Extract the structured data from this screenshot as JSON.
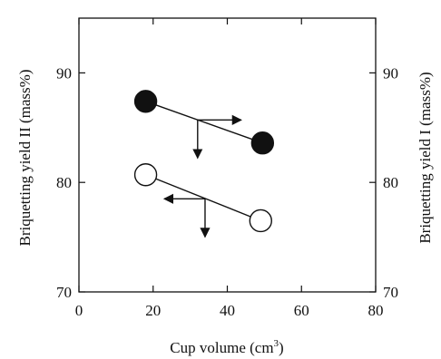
{
  "chart_data": {
    "type": "scatter",
    "title": "",
    "xlabel": "Cup volume (cm",
    "xlabel_sup": "3",
    "xlabel_end": ")",
    "ylabel_left": "Briquetting yield II (mass%)",
    "ylabel_right": "Briquetting yield I (mass%)",
    "xlim": [
      0,
      80
    ],
    "ylim": [
      70,
      95
    ],
    "x_ticks": [
      0,
      20,
      40,
      60,
      80
    ],
    "x_tick_labels": [
      "0",
      "20",
      "40",
      "60",
      "80"
    ],
    "y_ticks": [
      70,
      80,
      90
    ],
    "y_tick_labels": [
      "70",
      "80",
      "90"
    ],
    "y_right_tick_labels": [
      "70",
      "80",
      "90"
    ],
    "grid": false,
    "series": [
      {
        "marker": "filled-circle",
        "x": [
          18,
          49.5
        ],
        "y": [
          87.4,
          83.6
        ],
        "axis_arrow": "right",
        "color": "#111111"
      },
      {
        "marker": "open-circle",
        "x": [
          18,
          49
        ],
        "y": [
          80.7,
          76.5
        ],
        "axis_arrow": "left",
        "color": "#111111"
      }
    ],
    "annotations": [
      {
        "type": "arrow-axis-indicator",
        "series": 0,
        "at": [
          32,
          85.7
        ],
        "horizontal": "right"
      },
      {
        "type": "arrow-axis-indicator",
        "series": 1,
        "at": [
          34,
          78.5
        ],
        "horizontal": "left"
      }
    ]
  }
}
